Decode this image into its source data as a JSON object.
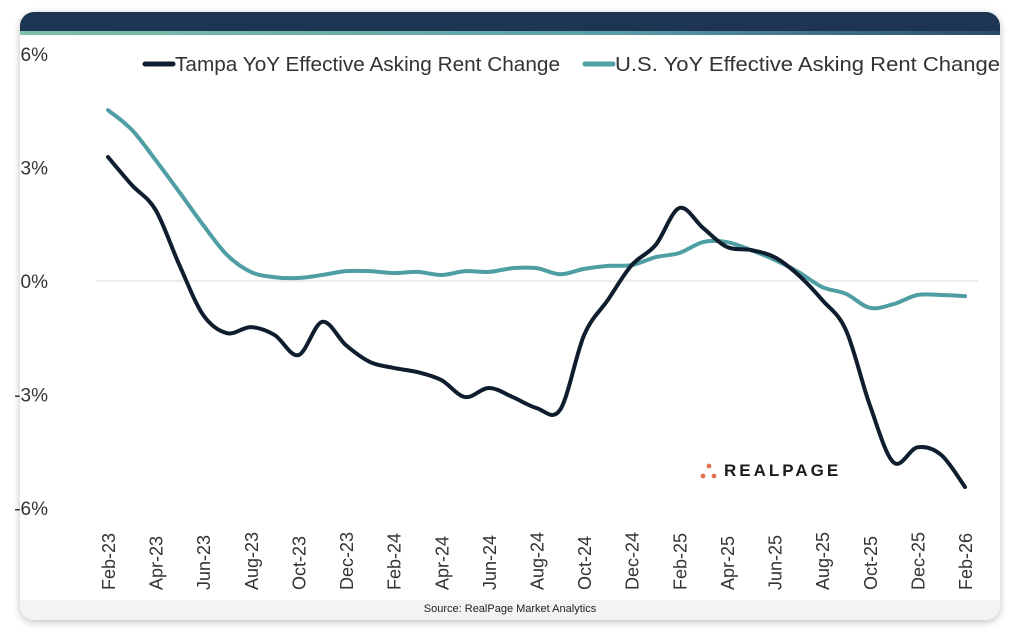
{
  "chart_data": {
    "type": "line",
    "title": "",
    "xlabel": "",
    "ylabel": "",
    "ylim": [
      -6,
      6
    ],
    "yticks": [
      "6%",
      "3%",
      "0%",
      "-3%",
      "-6%"
    ],
    "ytick_values": [
      6,
      3,
      0,
      -3,
      -6
    ],
    "grid": "zero line only",
    "legend_position": "top",
    "x": [
      "Feb-23",
      "Mar-23",
      "Apr-23",
      "May-23",
      "Jun-23",
      "Jul-23",
      "Aug-23",
      "Sep-23",
      "Oct-23",
      "Nov-23",
      "Dec-23",
      "Jan-24",
      "Feb-24",
      "Mar-24",
      "Apr-24",
      "May-24",
      "Jun-24",
      "Jul-24",
      "Aug-24",
      "Sep-24",
      "Oct-24",
      "Nov-24",
      "Dec-24",
      "Jan-25",
      "Feb-25",
      "Mar-25",
      "Apr-25",
      "May-25",
      "Jun-25",
      "Jul-25",
      "Aug-25",
      "Sep-25",
      "Oct-25",
      "Nov-25",
      "Dec-25",
      "Jan-26",
      "Feb-26"
    ],
    "xtick_labels": [
      "Feb-23",
      "Apr-23",
      "Jun-23",
      "Aug-23",
      "Oct-23",
      "Dec-23",
      "Feb-24",
      "Apr-24",
      "Jun-24",
      "Aug-24",
      "Oct-24",
      "Dec-24",
      "Feb-25",
      "Apr-25",
      "Jun-25",
      "Aug-25",
      "Oct-25",
      "Dec-25",
      "Feb-26"
    ],
    "series": [
      {
        "name": "Tampa YoY Effective Asking Rent Change",
        "color": "#0f1e2e",
        "values": [
          3.28,
          2.54,
          1.88,
          0.42,
          -0.9,
          -1.38,
          -1.22,
          -1.43,
          -1.96,
          -1.08,
          -1.7,
          -2.14,
          -2.3,
          -2.41,
          -2.62,
          -3.07,
          -2.83,
          -3.07,
          -3.36,
          -3.4,
          -1.43,
          -0.5,
          0.42,
          0.95,
          1.93,
          1.4,
          0.9,
          0.82,
          0.63,
          0.16,
          -0.5,
          -1.3,
          -3.28,
          -4.8,
          -4.4,
          -4.6,
          -5.45
        ]
      },
      {
        "name": "U.S. YoY Effective Asking Rent Change",
        "color": "#4e9ea3",
        "values": [
          4.52,
          4.0,
          3.2,
          2.35,
          1.48,
          0.69,
          0.24,
          0.1,
          0.08,
          0.16,
          0.26,
          0.26,
          0.21,
          0.24,
          0.16,
          0.26,
          0.24,
          0.34,
          0.34,
          0.18,
          0.32,
          0.4,
          0.42,
          0.63,
          0.74,
          1.03,
          1.03,
          0.82,
          0.56,
          0.24,
          -0.16,
          -0.34,
          -0.71,
          -0.61,
          -0.37,
          -0.37,
          -0.4
        ]
      }
    ]
  },
  "logo": {
    "text": "REALPAGE",
    "color": "#e0714f"
  },
  "source": "Source: RealPage Market Analytics"
}
